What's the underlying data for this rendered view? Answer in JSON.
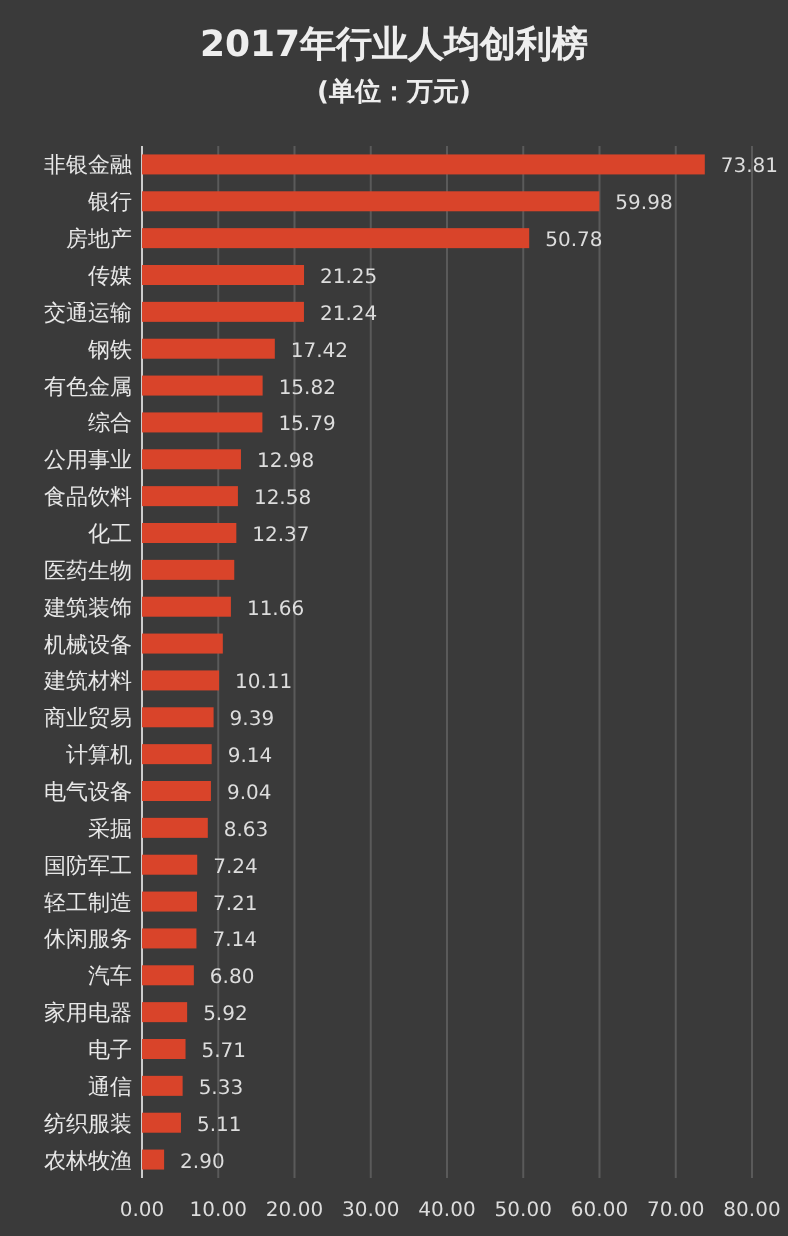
{
  "chart_data": {
    "type": "bar",
    "orientation": "horizontal",
    "title": "2017年行业人均创利榜",
    "subtitle": "(单位：万元)",
    "categories": [
      "非银金融",
      "银行",
      "房地产",
      "传媒",
      "交通运输",
      "钢铁",
      "有色金属",
      "综合",
      "公用事业",
      "食品饮料",
      "化工",
      "医药生物",
      "建筑装饰",
      "机械设备",
      "建筑材料",
      "商业贸易",
      "计算机",
      "电气设备",
      "采掘",
      "国防军工",
      "轻工制造",
      "休闲服务",
      "汽车",
      "家用电器",
      "电子",
      "通信",
      "纺织服装",
      "农林牧渔"
    ],
    "values": [
      73.81,
      59.98,
      50.78,
      21.25,
      21.24,
      17.42,
      15.82,
      15.79,
      12.98,
      12.58,
      12.37,
      12.1,
      11.66,
      10.6,
      10.11,
      9.39,
      9.14,
      9.04,
      8.63,
      7.24,
      7.21,
      7.14,
      6.8,
      5.92,
      5.71,
      5.33,
      5.11,
      2.9
    ],
    "value_labels": [
      "73.81",
      "59.98",
      "50.78",
      "21.25",
      "21.24",
      "17.42",
      "15.82",
      "15.79",
      "12.98",
      "12.58",
      "12.37",
      null,
      "11.66",
      null,
      "10.11",
      "9.39",
      "9.14",
      "9.04",
      "8.63",
      "7.24",
      "7.21",
      "7.14",
      "6.80",
      "5.92",
      "5.71",
      "5.33",
      "5.11",
      "2.90"
    ],
    "color": "#d9442a",
    "xlim": [
      0,
      80
    ],
    "xticks": [
      {
        "value": 0,
        "label": "0.00"
      },
      {
        "value": 10,
        "label": "10.00"
      },
      {
        "value": 20,
        "label": "20.00"
      },
      {
        "value": 30,
        "label": "30.00"
      },
      {
        "value": 40,
        "label": "40.00"
      },
      {
        "value": 50,
        "label": "50.00"
      },
      {
        "value": 60,
        "label": "60.00"
      },
      {
        "value": 70,
        "label": "70.00"
      },
      {
        "value": 80,
        "label": "80.00"
      }
    ],
    "grid": "x"
  }
}
